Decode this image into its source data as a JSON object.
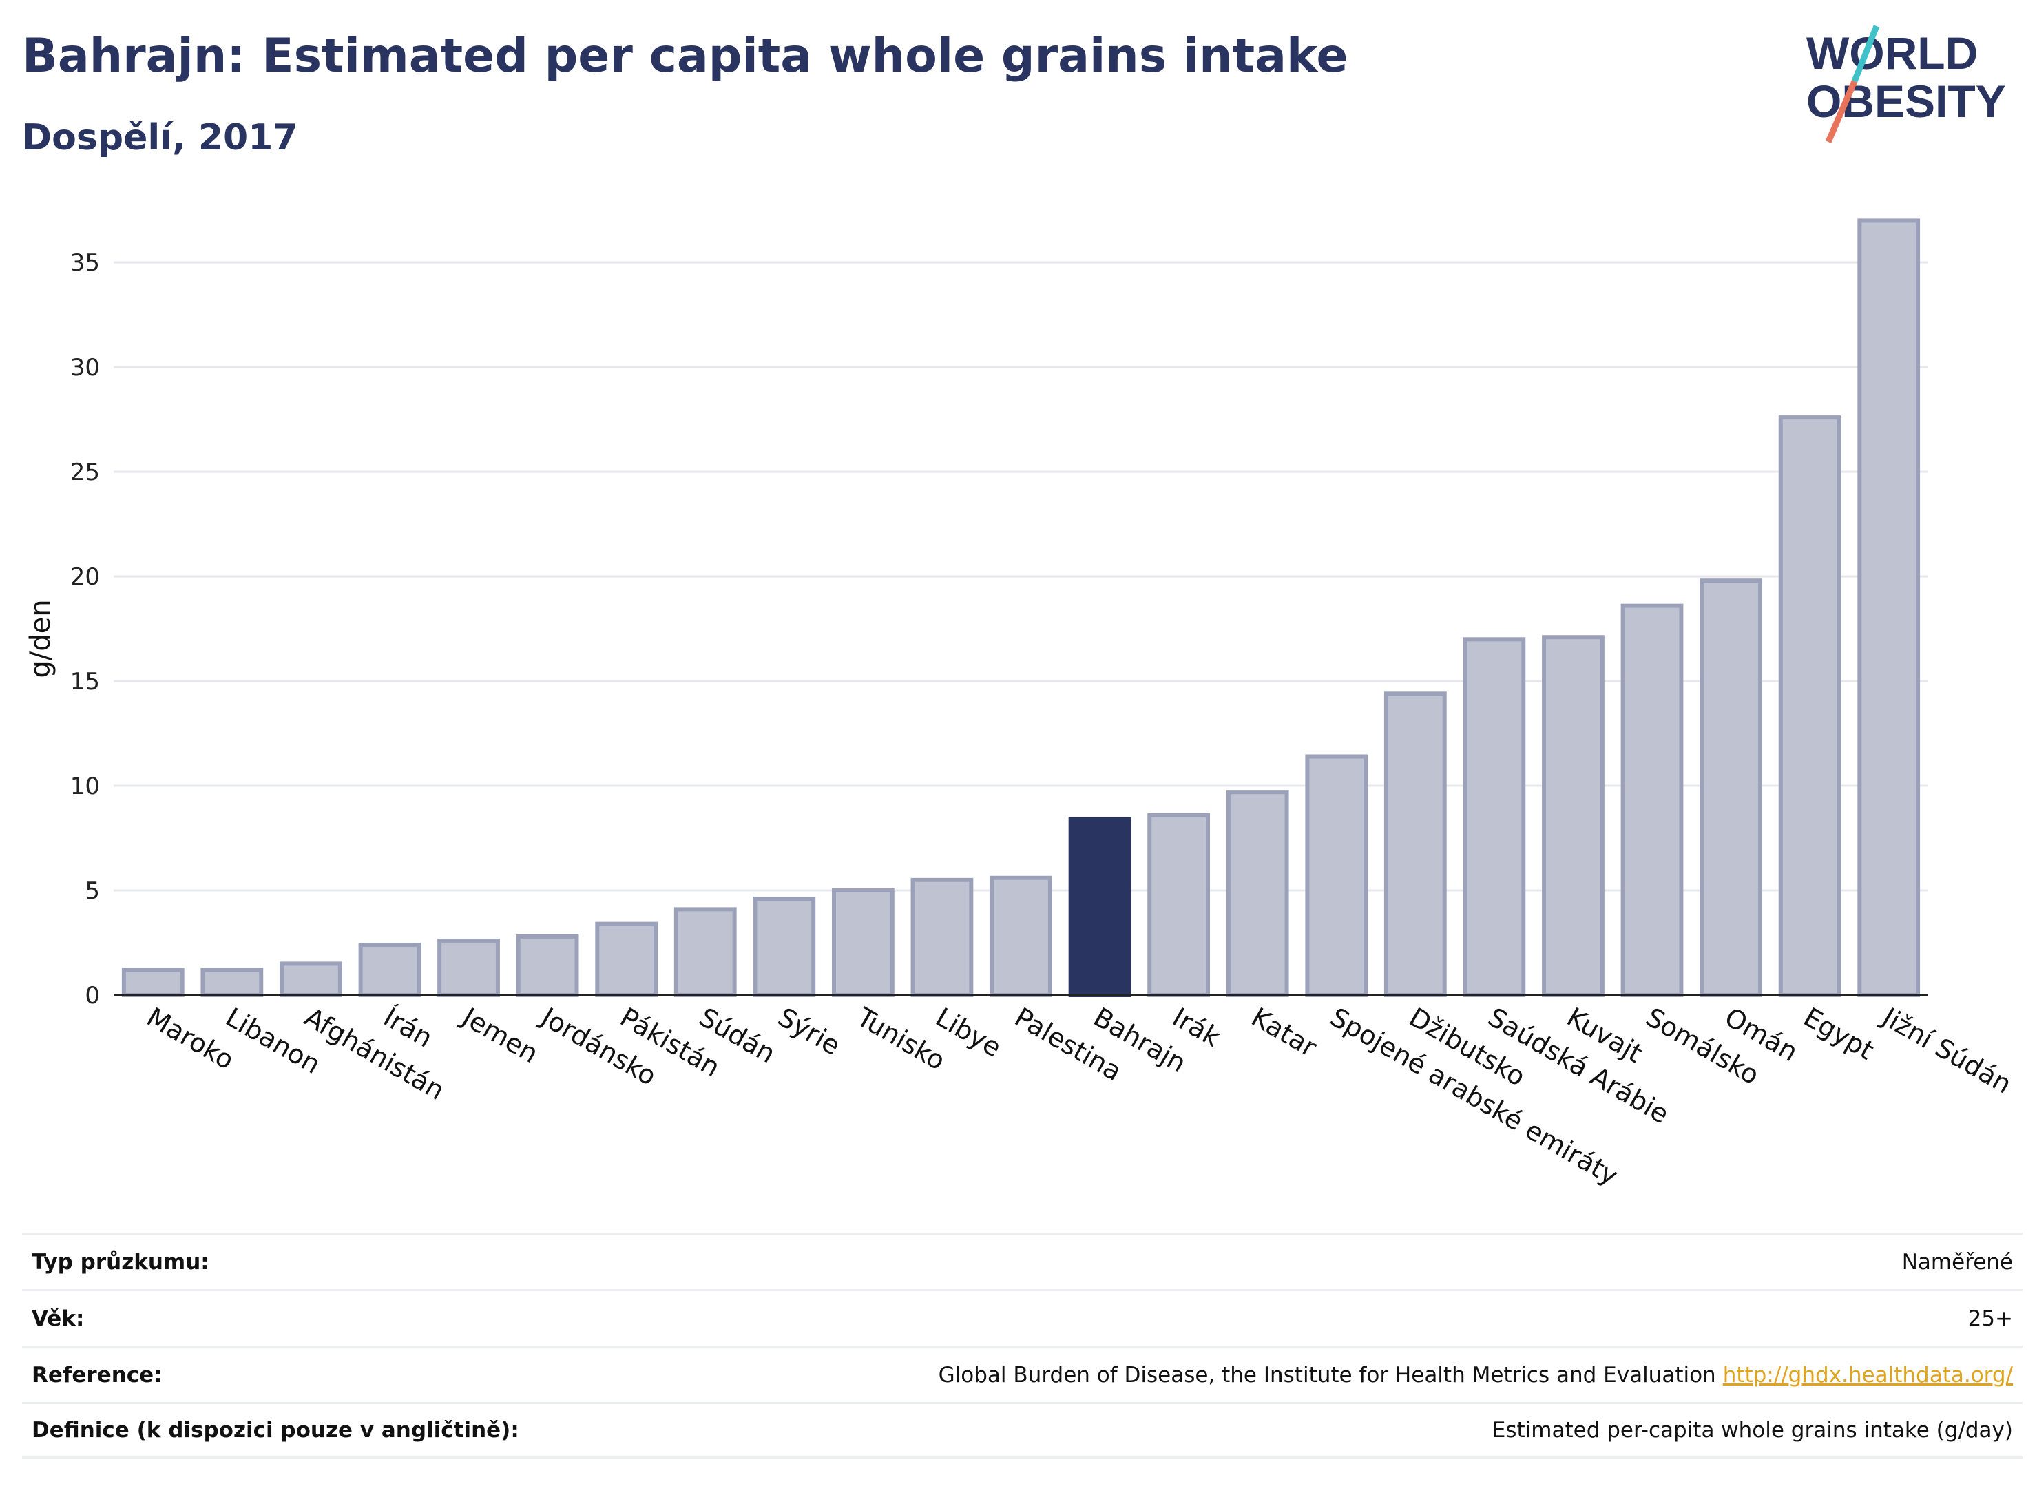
{
  "header": {
    "title": "Bahrajn: Estimated per capita whole grains intake",
    "subtitle": "Dospělí, 2017"
  },
  "logo": {
    "line1": "WORLD",
    "line2": "OBESITY",
    "accent_teal": "#3ec1c9",
    "accent_coral": "#e8735a"
  },
  "colors": {
    "bar_fill": "#bfc2d1",
    "bar_stroke": "#9ca1ba",
    "highlight": "#2a3460",
    "grid": "#e6e8ee",
    "axis": "#222222"
  },
  "chart_data": {
    "type": "bar",
    "title": "Bahrajn: Estimated per capita whole grains intake",
    "subtitle": "Dospělí, 2017",
    "xlabel": "",
    "ylabel": "g/den",
    "ylim": [
      0,
      38
    ],
    "yticks": [
      0,
      5,
      10,
      15,
      20,
      25,
      30,
      35
    ],
    "grid": true,
    "highlight": "Bahrajn",
    "categories": [
      "Maroko",
      "Libanon",
      "Afghánistán",
      "Írán",
      "Jemen",
      "Jordánsko",
      "Pákistán",
      "Súdán",
      "Sýrie",
      "Tunisko",
      "Libye",
      "Palestina",
      "Bahrajn",
      "Irák",
      "Katar",
      "Spojené arabské emiráty",
      "Džibutsko",
      "Saúdská Arábie",
      "Kuvajt",
      "Somálsko",
      "Omán",
      "Egypt",
      "Jižní Súdán"
    ],
    "values": [
      1.2,
      1.2,
      1.5,
      2.4,
      2.6,
      2.8,
      3.4,
      4.1,
      4.6,
      5.0,
      5.5,
      5.6,
      8.4,
      8.6,
      9.7,
      11.4,
      14.4,
      17.0,
      17.1,
      18.6,
      19.8,
      27.6,
      37.0
    ]
  },
  "info": {
    "rows": [
      {
        "label": "Typ průzkumu:",
        "value": "Naměřené"
      },
      {
        "label": "Věk:",
        "value": "25+"
      },
      {
        "label": "Reference:",
        "value": "Global Burden of Disease, the Institute for Health Metrics and Evaluation",
        "link": "http://ghdx.healthdata.org/"
      },
      {
        "label": "Definice (k dispozici pouze v angličtině):",
        "value": "Estimated per-capita whole grains intake (g/day)"
      }
    ]
  }
}
